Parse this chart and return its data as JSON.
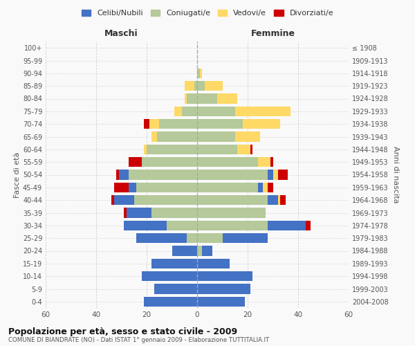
{
  "age_groups": [
    "0-4",
    "5-9",
    "10-14",
    "15-19",
    "20-24",
    "25-29",
    "30-34",
    "35-39",
    "40-44",
    "45-49",
    "50-54",
    "55-59",
    "60-64",
    "65-69",
    "70-74",
    "75-79",
    "80-84",
    "85-89",
    "90-94",
    "95-99",
    "100+"
  ],
  "birth_years": [
    "2004-2008",
    "1999-2003",
    "1994-1998",
    "1989-1993",
    "1984-1988",
    "1979-1983",
    "1974-1978",
    "1969-1973",
    "1964-1968",
    "1959-1963",
    "1954-1958",
    "1949-1953",
    "1944-1948",
    "1939-1943",
    "1934-1938",
    "1929-1933",
    "1924-1928",
    "1919-1923",
    "1914-1918",
    "1909-1913",
    "≤ 1908"
  ],
  "male": {
    "celibe": [
      21,
      17,
      22,
      18,
      10,
      20,
      17,
      10,
      8,
      3,
      4,
      0,
      0,
      0,
      0,
      0,
      0,
      0,
      0,
      0,
      0
    ],
    "coniugato": [
      0,
      0,
      0,
      0,
      0,
      4,
      12,
      18,
      25,
      24,
      27,
      22,
      20,
      16,
      15,
      6,
      4,
      1,
      0,
      0,
      0
    ],
    "vedovo": [
      0,
      0,
      0,
      0,
      0,
      0,
      0,
      0,
      0,
      0,
      0,
      0,
      1,
      2,
      4,
      3,
      1,
      4,
      0,
      0,
      0
    ],
    "divorziato": [
      0,
      0,
      0,
      0,
      0,
      0,
      0,
      1,
      1,
      6,
      1,
      5,
      0,
      0,
      2,
      0,
      0,
      0,
      0,
      0,
      0
    ]
  },
  "female": {
    "nubile": [
      19,
      21,
      22,
      13,
      4,
      18,
      15,
      0,
      4,
      2,
      2,
      0,
      0,
      0,
      0,
      0,
      0,
      0,
      0,
      0,
      0
    ],
    "coniugata": [
      0,
      0,
      0,
      0,
      2,
      10,
      28,
      27,
      28,
      24,
      28,
      24,
      16,
      15,
      18,
      15,
      8,
      3,
      1,
      0,
      0
    ],
    "vedova": [
      0,
      0,
      0,
      0,
      0,
      0,
      0,
      0,
      1,
      2,
      2,
      5,
      5,
      10,
      15,
      22,
      8,
      7,
      1,
      0,
      0
    ],
    "divorziata": [
      0,
      0,
      0,
      0,
      0,
      0,
      2,
      0,
      2,
      2,
      4,
      1,
      1,
      0,
      0,
      0,
      0,
      0,
      0,
      0,
      0
    ]
  },
  "colors": {
    "celibe": "#4472C4",
    "coniugato": "#B5C99A",
    "vedovo": "#FFD966",
    "divorziato": "#CC0000"
  },
  "title": "Popolazione per età, sesso e stato civile - 2009",
  "subtitle": "COMUNE DI BIANDRATE (NO) - Dati ISTAT 1° gennaio 2009 - Elaborazione TUTTITALIA.IT",
  "ylabel_left": "Fasce di età",
  "ylabel_right": "Anni di nascita",
  "xlabel_left": "Maschi",
  "xlabel_right": "Femmine",
  "xlim": 60,
  "bg_color": "#f9f9f9",
  "grid_color": "#cccccc",
  "legend_labels": [
    "Celibi/Nubili",
    "Coniugati/e",
    "Vedovi/e",
    "Divorziati/e"
  ]
}
